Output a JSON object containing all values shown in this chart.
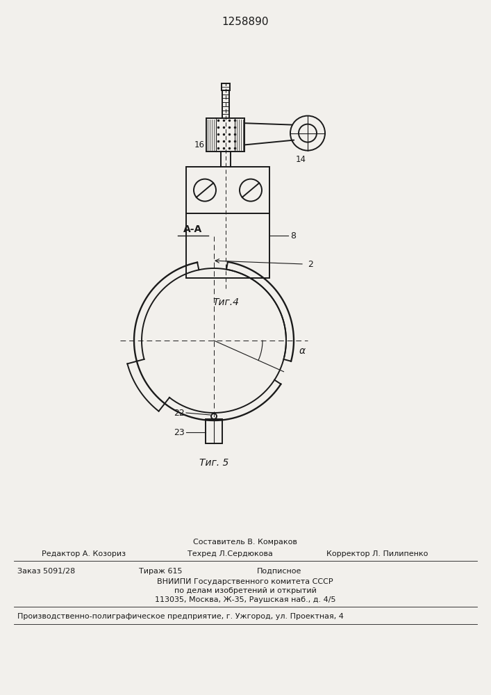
{
  "title": "1258890",
  "fig4_label": "Τиг.4",
  "fig5_label": "Τиг. 5",
  "section_label": "А-А",
  "label_8": "8",
  "label_14": "14",
  "label_16": "16",
  "label_2": "2",
  "label_22": "22",
  "label_23": "23",
  "label_alpha": "α",
  "footer_line1": "Составитель В. Комраков",
  "footer_line2_left": "Редактор А. Козориз",
  "footer_line2_mid": "Техред Л.Сердюкова",
  "footer_line2_right": "Корректор Л. Пилипенко",
  "footer_line3_left": "Заказ 5091/28",
  "footer_line3_mid": "Тираж 615",
  "footer_line3_right": "Подписное",
  "footer_line4": "ВНИИПИ Государственного комитета СССР",
  "footer_line5": "по делам изобретений и открытий",
  "footer_line6": "113035, Москва, Ж-35, Раушская наб., д. 4/5",
  "footer_line7": "Производственно-полиграфическое предприятие, г. Ужгород, ул. Проектная, 4",
  "bg_color": "#f2f0ec",
  "line_color": "#1a1a1a"
}
